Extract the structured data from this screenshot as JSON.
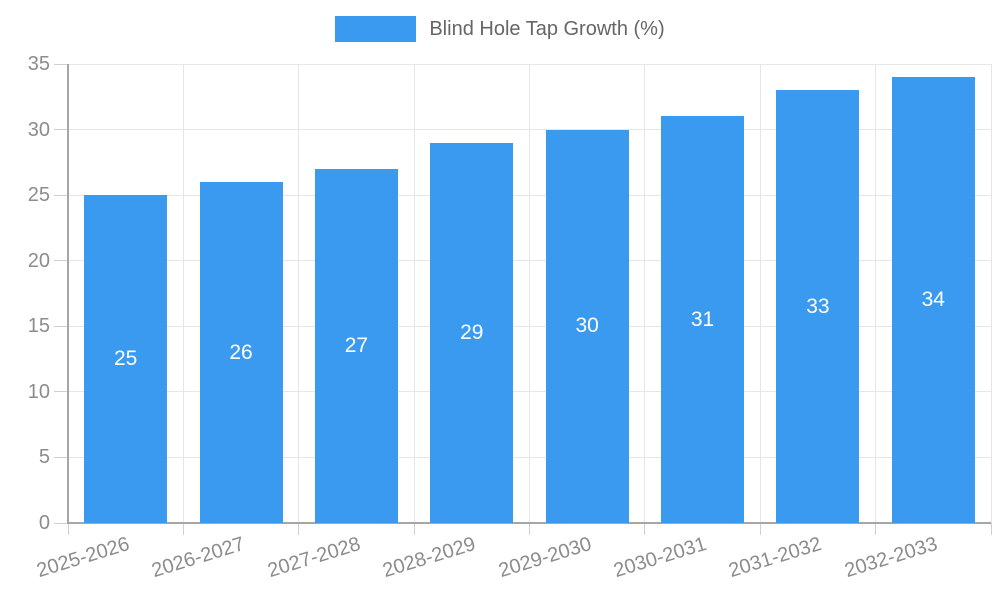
{
  "legend": {
    "label": "Blind Hole Tap Growth (%)"
  },
  "chart_data": {
    "type": "bar",
    "title": "Blind Hole Tap Growth (%)",
    "categories": [
      "2025-2026",
      "2026-2027",
      "2027-2028",
      "2028-2029",
      "2029-2030",
      "2030-2031",
      "2031-2032",
      "2032-2033"
    ],
    "values": [
      25,
      26,
      27,
      29,
      30,
      31,
      33,
      34
    ],
    "bar_labels": [
      25,
      26,
      27,
      29,
      30,
      31,
      33,
      34
    ],
    "xlabel": "",
    "ylabel": "",
    "ylim": [
      0,
      35
    ],
    "yticks": [
      0,
      5,
      10,
      15,
      20,
      25,
      30,
      35
    ],
    "grid": true,
    "legend_position": "top-center"
  },
  "colors": {
    "bar": "#3a9aef",
    "grid": "#e6e6e6",
    "axis": "#a6a6a6",
    "tick": "#cfcfcf",
    "tick_label": "#8c8c8c",
    "legend_label": "#666666",
    "bar_label": "#ffffff",
    "background": "#ffffff"
  }
}
